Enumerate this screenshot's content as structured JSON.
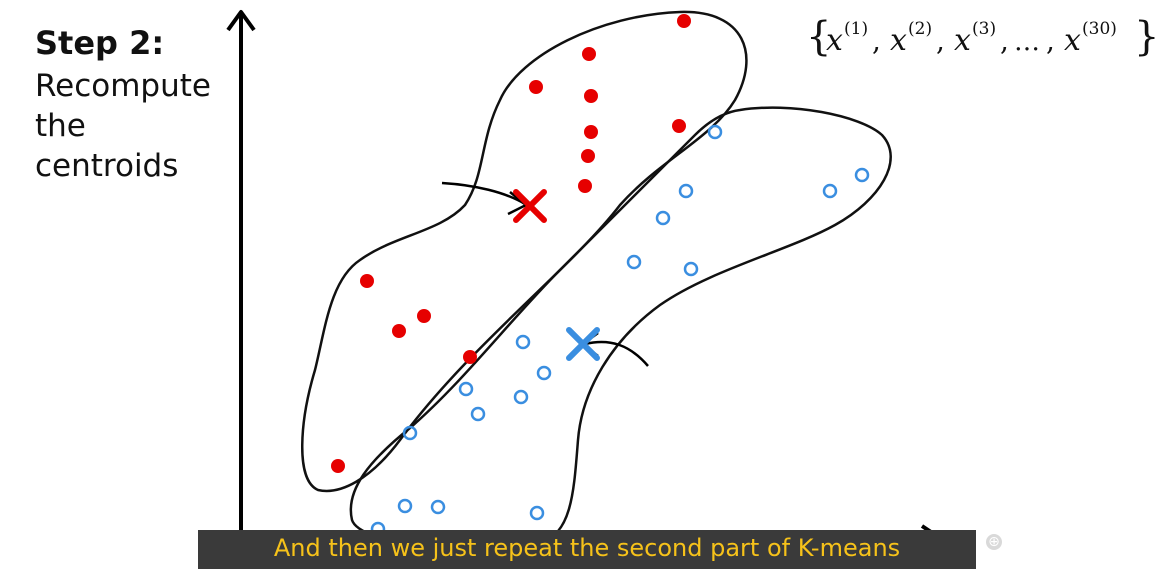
{
  "slide": {
    "step_title": "Step 2:",
    "step_lines": [
      "Recompute",
      "the",
      "centroids"
    ],
    "set_notation": {
      "open": "{",
      "close": "}",
      "items": [
        {
          "base": "x",
          "sup": "(1)"
        },
        {
          "base": "x",
          "sup": "(2)"
        },
        {
          "base": "x",
          "sup": "(3)"
        },
        {
          "text": "…"
        },
        {
          "base": "x",
          "sup": "(30)"
        }
      ]
    }
  },
  "caption": {
    "text": "And then we just repeat the second part of K-means"
  },
  "icons": {
    "plus": "plus-icon",
    "plus_glyph": "⊕"
  },
  "colors": {
    "red_cluster": "#e60000",
    "blue_cluster": "#3a8ee0",
    "caption_text": "#f6c21a",
    "caption_bg": "#3a3a3a"
  }
}
